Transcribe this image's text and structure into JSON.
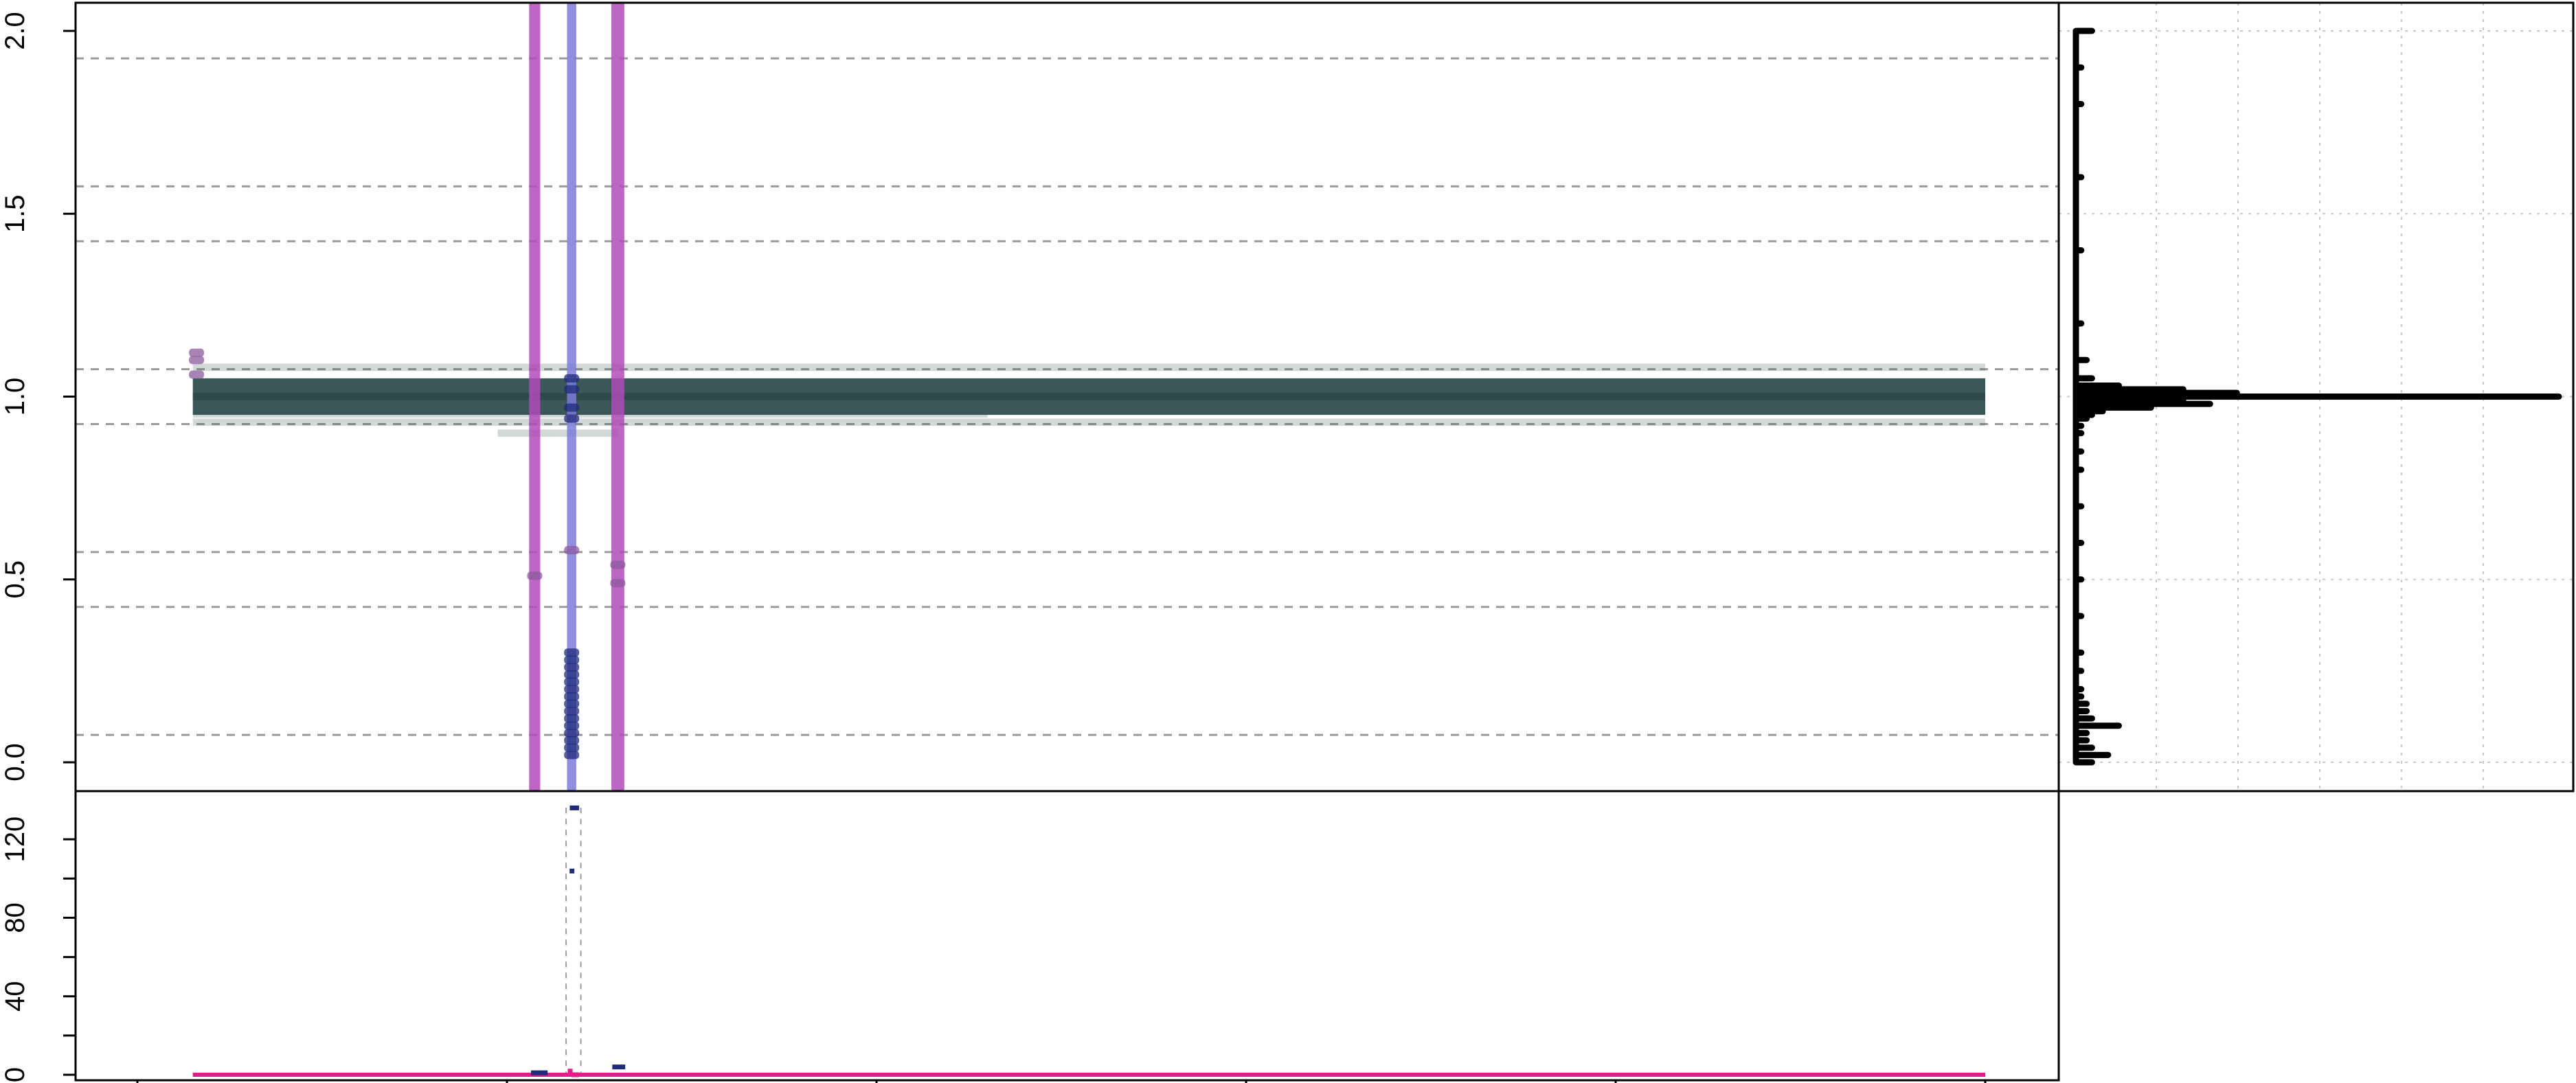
{
  "chart_data": [
    {
      "type": "scatter",
      "xlabel": "",
      "ylabel": "",
      "ylim": [
        0,
        2
      ],
      "y_ticks": [
        "0.0",
        "0.5",
        "1.0",
        "1.5",
        "2.0"
      ],
      "y_tick_values": [
        0,
        0.5,
        1,
        1.5,
        2
      ],
      "xlim": [
        0,
        100
      ],
      "grid": "horizontal dashed reference lines",
      "reference_lines": [
        0.075,
        0.425,
        0.575,
        0.925,
        1.075,
        1.425,
        1.575,
        1.925
      ],
      "band": {
        "center": 1.0,
        "height": 0.1,
        "x_start": 3.0,
        "x_end": 100.0,
        "color": "#2F4F4F"
      },
      "band_halo": [
        {
          "x_start": 3.0,
          "x_end": 100.0,
          "y": 1.08,
          "height": 0.02
        },
        {
          "x_start": 3.0,
          "x_end": 100.0,
          "y": 0.93,
          "height": 0.02
        },
        {
          "x_start": 19.5,
          "x_end": 26.0,
          "y": 0.9,
          "height": 0.02
        },
        {
          "x_start": 3.0,
          "x_end": 46.0,
          "y": 0.95,
          "height": 0.015
        }
      ],
      "highlight_columns": [
        {
          "x": 21.5,
          "width": 0.6,
          "color": "#B24BB8"
        },
        {
          "x": 23.5,
          "width": 0.5,
          "color": "#7B7BD8"
        },
        {
          "x": 26.0,
          "width": 0.7,
          "color": "#B24BB8"
        }
      ],
      "series": [
        {
          "color": "#1F2A7A",
          "points": [
            {
              "x": 23.5,
              "y": 0.02
            },
            {
              "x": 23.5,
              "y": 0.04
            },
            {
              "x": 23.5,
              "y": 0.06
            },
            {
              "x": 23.5,
              "y": 0.08
            },
            {
              "x": 23.5,
              "y": 0.1
            },
            {
              "x": 23.5,
              "y": 0.12
            },
            {
              "x": 23.5,
              "y": 0.14
            },
            {
              "x": 23.5,
              "y": 0.16
            },
            {
              "x": 23.5,
              "y": 0.18
            },
            {
              "x": 23.5,
              "y": 0.2
            },
            {
              "x": 23.5,
              "y": 0.22
            },
            {
              "x": 23.5,
              "y": 0.24
            },
            {
              "x": 23.5,
              "y": 0.26
            },
            {
              "x": 23.5,
              "y": 0.28
            },
            {
              "x": 23.5,
              "y": 0.3
            },
            {
              "x": 23.5,
              "y": 0.94
            },
            {
              "x": 23.5,
              "y": 0.97
            },
            {
              "x": 23.5,
              "y": 1.02
            },
            {
              "x": 23.5,
              "y": 1.05
            }
          ]
        },
        {
          "color": "#8E5A9E",
          "points": [
            {
              "x": 21.5,
              "y": 0.51
            },
            {
              "x": 26.0,
              "y": 0.49
            },
            {
              "x": 26.0,
              "y": 0.54
            },
            {
              "x": 23.5,
              "y": 0.58
            },
            {
              "x": 3.2,
              "y": 1.06
            },
            {
              "x": 3.2,
              "y": 1.1
            },
            {
              "x": 3.2,
              "y": 1.12
            }
          ]
        }
      ]
    },
    {
      "type": "bar",
      "orientation": "horizontal",
      "xlabel": "",
      "ylabel": "",
      "ylim": [
        0,
        2
      ],
      "y_ticks": [],
      "x_ticks": [],
      "grid": "dotted",
      "bins": [
        0.0,
        0.02,
        0.04,
        0.06,
        0.08,
        0.1,
        0.12,
        0.14,
        0.16,
        0.18,
        0.2,
        0.25,
        0.3,
        0.4,
        0.5,
        0.6,
        0.7,
        0.8,
        0.85,
        0.9,
        0.92,
        0.94,
        0.95,
        0.96,
        0.97,
        0.98,
        0.99,
        1.0,
        1.01,
        1.02,
        1.03,
        1.05,
        1.1,
        1.2,
        1.4,
        1.6,
        1.8,
        1.9,
        2.0
      ],
      "values": [
        3,
        6,
        3,
        2,
        2,
        8,
        3,
        2,
        2,
        1,
        1,
        1,
        1,
        1,
        1,
        1,
        1,
        1,
        1,
        1,
        1,
        2,
        3,
        5,
        14,
        25,
        20,
        90,
        30,
        20,
        8,
        3,
        2,
        1,
        1,
        1,
        1,
        1,
        3
      ],
      "xlim": [
        0,
        100
      ]
    },
    {
      "type": "scatter",
      "xlabel": "",
      "ylabel": "",
      "ylim": [
        0,
        140
      ],
      "y_ticks": [
        "0",
        "40",
        "80",
        "120"
      ],
      "y_tick_values": [
        0,
        40,
        80,
        120
      ],
      "y_minor_ticks": [
        20,
        60,
        100
      ],
      "x_ticks": [
        "",
        "",
        "",
        "",
        "",
        ""
      ],
      "x_tick_values": [
        0,
        20,
        40,
        60,
        80,
        100
      ],
      "xlim": [
        0,
        100
      ],
      "baseline": {
        "y": 0,
        "x_start": 3.0,
        "x_end": 100.0,
        "color": "#E8198B"
      },
      "vertical_guides": [
        23.2,
        24.0
      ],
      "segments": [
        {
          "x_start": 21.3,
          "x_end": 22.2,
          "y": 1,
          "color": "#1F2A7A"
        },
        {
          "x_start": 25.7,
          "x_end": 26.4,
          "y": 4,
          "color": "#1F2A7A"
        },
        {
          "x_start": 23.5,
          "x_end": 23.9,
          "y": 0,
          "color": "#E8198B"
        },
        {
          "x_start": 23.4,
          "x_end": 23.9,
          "y": 136,
          "color": "#1F2A7A"
        }
      ],
      "points": [
        {
          "x": 23.5,
          "y": 104,
          "color": "#1F2A7A"
        },
        {
          "x": 23.4,
          "y": 2,
          "color": "#E8198B"
        }
      ]
    }
  ]
}
